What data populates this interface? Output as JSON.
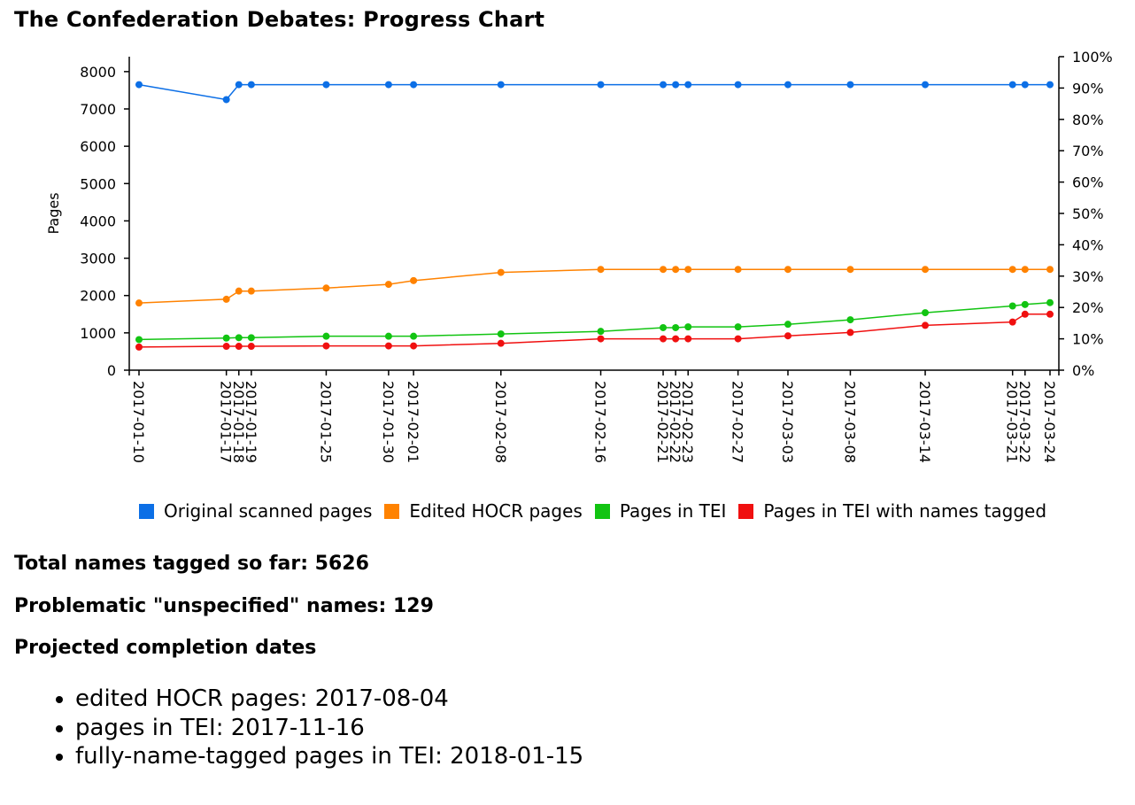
{
  "title": "The Confederation Debates: Progress Chart",
  "chart_data": {
    "type": "line",
    "x": [
      "2017-01-10",
      "2017-01-17",
      "2017-01-18",
      "2017-01-19",
      "2017-01-25",
      "2017-01-30",
      "2017-02-01",
      "2017-02-08",
      "2017-02-16",
      "2017-02-21",
      "2017-02-22",
      "2017-02-23",
      "2017-02-27",
      "2017-03-03",
      "2017-03-08",
      "2017-03-14",
      "2017-03-21",
      "2017-03-22",
      "2017-03-24"
    ],
    "series": [
      {
        "name": "Original scanned pages",
        "color": "#0c6fe6",
        "values": [
          7650,
          7250,
          7650,
          7650,
          7650,
          7650,
          7650,
          7650,
          7650,
          7650,
          7650,
          7650,
          7650,
          7650,
          7650,
          7650,
          7650,
          7650,
          7650
        ]
      },
      {
        "name": "Edited HOCR pages",
        "color": "#ff8200",
        "values": [
          1800,
          1900,
          2120,
          2120,
          2200,
          2300,
          2400,
          2620,
          2700,
          2700,
          2700,
          2700,
          2700,
          2700,
          2700,
          2700,
          2700,
          2700,
          2700
        ]
      },
      {
        "name": "Pages in TEI",
        "color": "#12c412",
        "values": [
          820,
          860,
          870,
          870,
          910,
          910,
          910,
          970,
          1040,
          1140,
          1140,
          1160,
          1160,
          1230,
          1350,
          1540,
          1720,
          1760,
          1810
        ]
      },
      {
        "name": "Pages in TEI with names tagged",
        "color": "#f01010",
        "values": [
          620,
          640,
          640,
          640,
          650,
          650,
          650,
          720,
          840,
          840,
          840,
          840,
          840,
          920,
          1010,
          1200,
          1290,
          1500,
          1500
        ]
      }
    ],
    "ylabel": "Pages",
    "ylim": [
      0,
      8400
    ],
    "yticks": [
      0,
      1000,
      2000,
      3000,
      4000,
      5000,
      6000,
      7000,
      8000
    ],
    "y2lim": [
      0,
      100
    ],
    "y2ticks": [
      "0%",
      "10%",
      "20%",
      "30%",
      "40%",
      "50%",
      "60%",
      "70%",
      "80%",
      "90%",
      "100%"
    ],
    "grid": false,
    "legend_position": "bottom"
  },
  "stats": {
    "names_tagged": "Total names tagged so far: 5626",
    "unspecified": "Problematic \"unspecified\" names: 129",
    "projected_heading": "Projected completion dates"
  },
  "projections": [
    "edited HOCR pages: 2017-08-04",
    "pages in TEI: 2017-11-16",
    "fully-name-tagged pages in TEI: 2018-01-15"
  ]
}
